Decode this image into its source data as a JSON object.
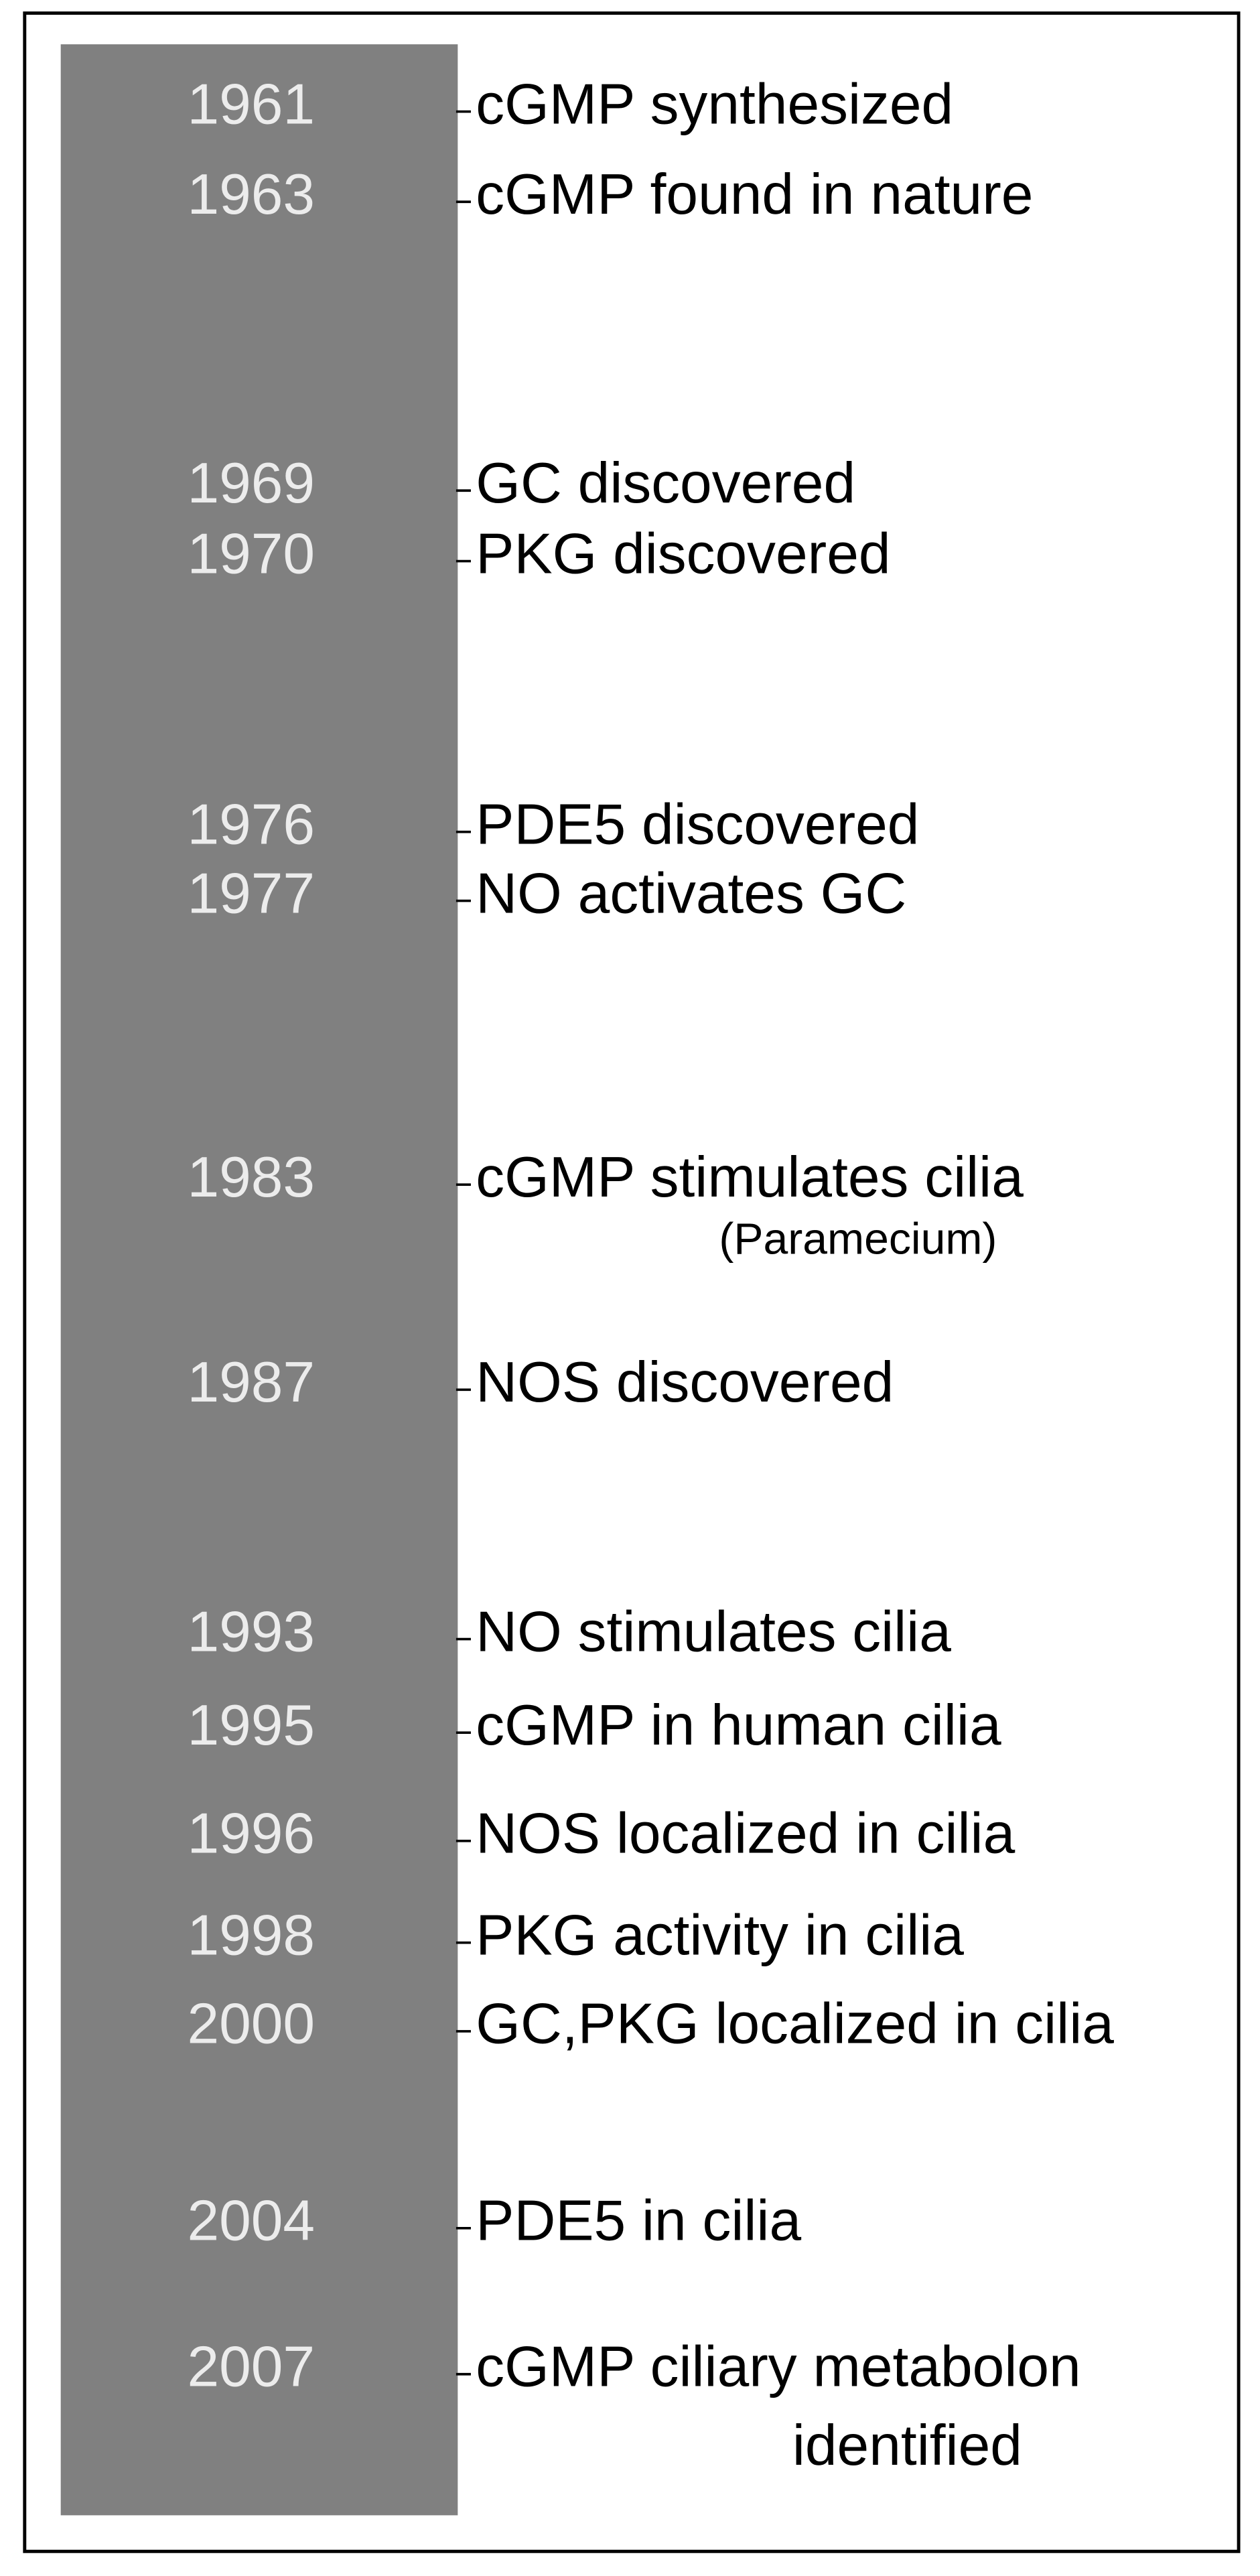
{
  "timeline": {
    "events": [
      {
        "year": "1961",
        "label": "cGMP synthesized"
      },
      {
        "year": "1963",
        "label": "cGMP found in nature"
      },
      {
        "year": "1969",
        "label": "GC discovered"
      },
      {
        "year": "1970",
        "label": "PKG discovered"
      },
      {
        "year": "1976",
        "label": "PDE5 discovered"
      },
      {
        "year": "1977",
        "label": "NO activates GC"
      },
      {
        "year": "1983",
        "label": "cGMP stimulates cilia",
        "note": "(Paramecium)"
      },
      {
        "year": "1987",
        "label": "NOS discovered"
      },
      {
        "year": "1993",
        "label": "NO stimulates cilia"
      },
      {
        "year": "1995",
        "label": "cGMP in human cilia"
      },
      {
        "year": "1996",
        "label": "NOS localized in cilia"
      },
      {
        "year": "1998",
        "label": "PKG activity in cilia"
      },
      {
        "year": "2000",
        "label": "GC,PKG localized in cilia"
      },
      {
        "year": "2004",
        "label": "PDE5 in cilia"
      },
      {
        "year": "2007",
        "label": "cGMP ciliary metabolon",
        "note": "identified"
      }
    ]
  }
}
